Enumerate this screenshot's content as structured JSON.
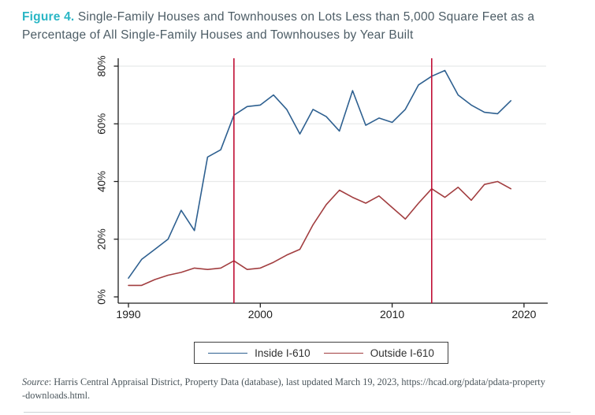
{
  "figure": {
    "label": "Figure 4.",
    "title_line1": "Single-Family Houses and Townhouses on Lots Less than 5,000 Square Feet as a",
    "title_line2": "Percentage of All Single-Family Houses and Townhouses by Year Built",
    "title_full": "Single-Family Houses and Townhouses on Lots Less than 5,000 Square Feet as a Percentage of All Single-Family Houses and Townhouses by Year Built"
  },
  "colors": {
    "accent_teal": "#29b6c5",
    "title_text": "#4d5d66",
    "inside_line": "#2e6090",
    "outside_line": "#a23e40",
    "event_line": "#c00f35",
    "grid": "#e8eaea",
    "axis": "#1f1f1f",
    "tick_text": "#1e1e1e"
  },
  "chart_data": {
    "type": "line",
    "x": [
      1990,
      1991,
      1992,
      1993,
      1994,
      1995,
      1996,
      1997,
      1998,
      1999,
      2000,
      2001,
      2002,
      2003,
      2004,
      2005,
      2006,
      2007,
      2008,
      2009,
      2010,
      2011,
      2012,
      2013,
      2014,
      2015,
      2016,
      2017,
      2018,
      2019
    ],
    "series": [
      {
        "name": "Inside I-610",
        "color": "#2e6090",
        "values": [
          6.5,
          13,
          16.5,
          20,
          30,
          23,
          48.5,
          51,
          63,
          66,
          66.5,
          70,
          65,
          56.5,
          65,
          62.5,
          57.5,
          71.5,
          59.5,
          62,
          60.5,
          65,
          73.5,
          76.5,
          78.5,
          70,
          66.5,
          64,
          63.5,
          68
        ]
      },
      {
        "name": "Outside I-610",
        "color": "#a23e40",
        "values": [
          4,
          4,
          6,
          7.5,
          8.5,
          10,
          9.5,
          10,
          12.5,
          9.5,
          10,
          12,
          14.5,
          16.5,
          25,
          32,
          37,
          34.5,
          32.5,
          35,
          31,
          27,
          32.5,
          37.5,
          34.5,
          38,
          33.5,
          39,
          40,
          37.5
        ]
      }
    ],
    "x_ticks": [
      {
        "label": "1990",
        "value": 1990
      },
      {
        "label": "2000",
        "value": 2000
      },
      {
        "label": "2010",
        "value": 2010
      },
      {
        "label": "2020",
        "value": 2020
      }
    ],
    "y_ticks": [
      {
        "label": "0%",
        "value": 0
      },
      {
        "label": "20%",
        "value": 20
      },
      {
        "label": "40%",
        "value": 40
      },
      {
        "label": "60%",
        "value": 60
      },
      {
        "label": "80%",
        "value": 80
      }
    ],
    "ylim": [
      0,
      83
    ],
    "xlim": [
      1989.2,
      2021
    ],
    "vlines": [
      1998,
      2013
    ],
    "grid": "horizontal",
    "legend_position": "bottom",
    "title": "",
    "xlabel": "",
    "ylabel": ""
  },
  "legend": {
    "inside_label": "Inside I-610",
    "outside_label": "Outside I-610"
  },
  "source": {
    "prefix": "Source",
    "line1_rest": ": Harris Central Appraisal District, Property Data (database), last updated March 19, 2023, https://hcad.org/pdata/pdata-property",
    "line2": "-downloads.html."
  }
}
